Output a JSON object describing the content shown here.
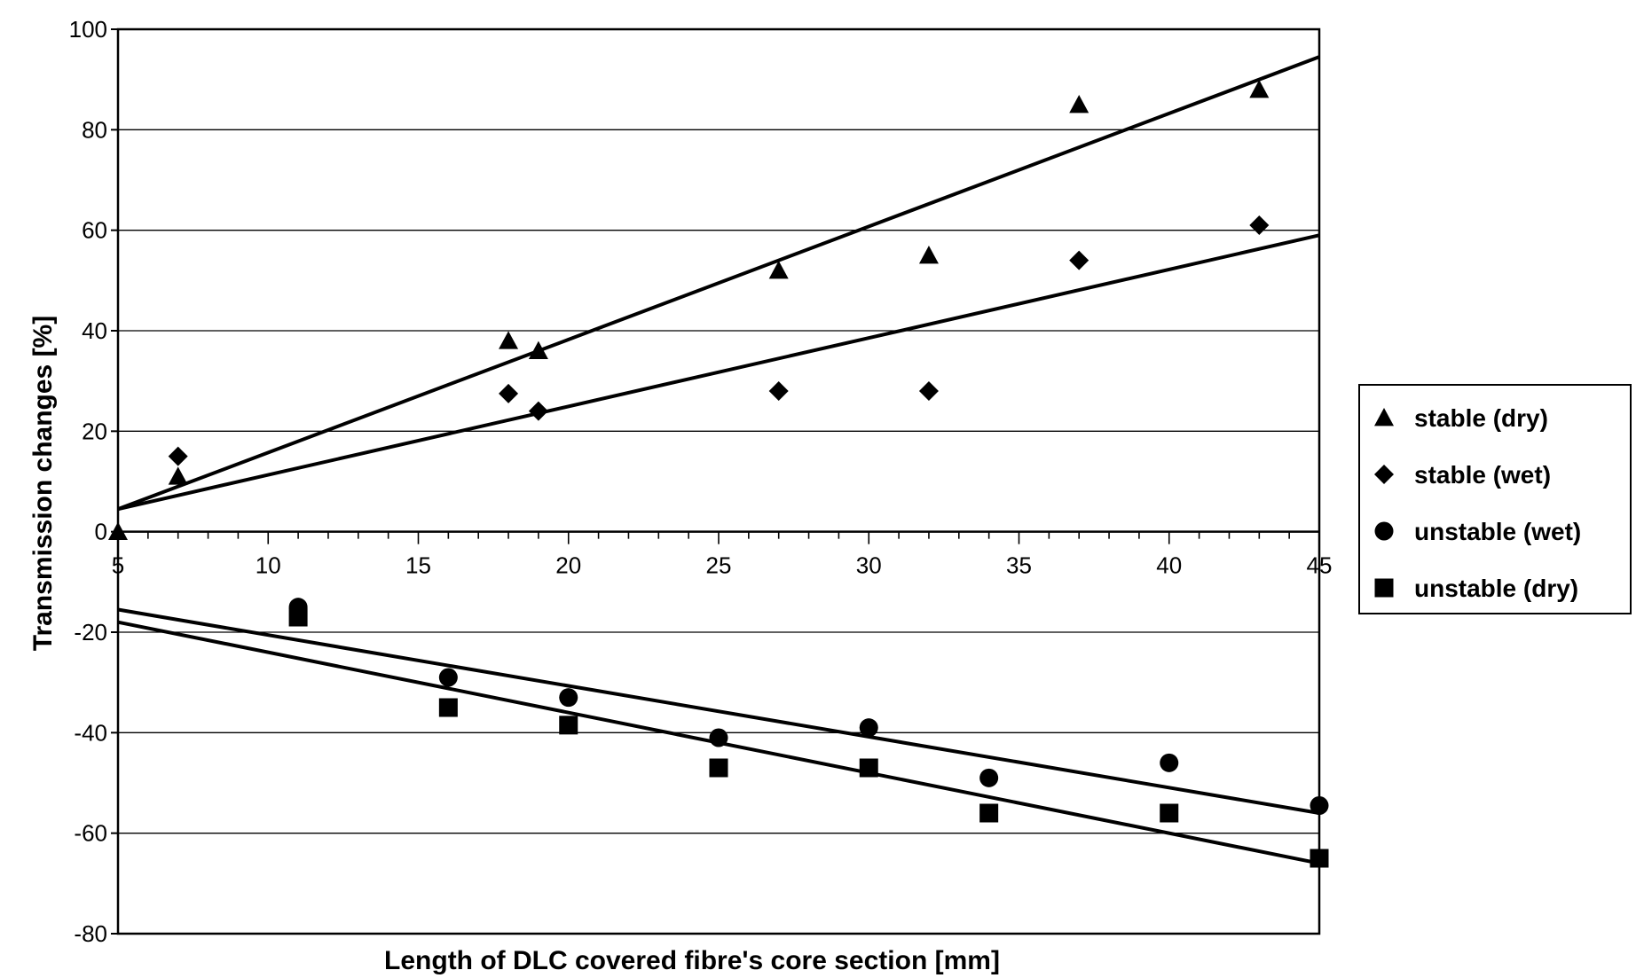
{
  "chart_data": {
    "type": "scatter",
    "xlabel": "Length of DLC covered fibre's core section [mm]",
    "ylabel": "Transmission changes [%]",
    "xlim": [
      5,
      45
    ],
    "ylim": [
      -80,
      100
    ],
    "x_ticks": [
      5,
      10,
      15,
      20,
      25,
      30,
      35,
      40,
      45
    ],
    "y_ticks": [
      100,
      80,
      60,
      40,
      20,
      0,
      -20,
      -40,
      -60,
      -80
    ],
    "x_tick_labels": [
      "5",
      "10",
      "15",
      "20",
      "25",
      "30",
      "35",
      "40",
      "45"
    ],
    "y_tick_labels": [
      "100",
      "80",
      "60",
      "40",
      "20",
      "0",
      "-20",
      "-40",
      "-60",
      "-80"
    ],
    "grid": true,
    "legend_position": "right",
    "series": [
      {
        "name": "stable (dry)",
        "marker": "triangle",
        "x": [
          5,
          7,
          18,
          19,
          27,
          32,
          37,
          43
        ],
        "y": [
          0,
          11,
          38,
          36,
          52,
          55,
          85,
          88
        ],
        "trendline": {
          "x": [
            5,
            45
          ],
          "y": [
            4.5,
            94.5
          ]
        }
      },
      {
        "name": "stable (wet)",
        "marker": "diamond",
        "x": [
          7,
          18,
          19,
          27,
          32,
          37,
          43
        ],
        "y": [
          15,
          27.5,
          24,
          28,
          28,
          54,
          61
        ],
        "trendline": {
          "x": [
            5,
            45
          ],
          "y": [
            4.5,
            59
          ]
        }
      },
      {
        "name": "unstable (wet)",
        "marker": "circle",
        "x": [
          11,
          16,
          20,
          25,
          30,
          34,
          40,
          45
        ],
        "y": [
          -15,
          -29,
          -33,
          -41,
          -39,
          -49,
          -46,
          -54.5
        ],
        "trendline": {
          "x": [
            5,
            45
          ],
          "y": [
            -15.5,
            -56
          ]
        }
      },
      {
        "name": "unstable (dry)",
        "marker": "square",
        "x": [
          11,
          16,
          20,
          25,
          30,
          34,
          40,
          45
        ],
        "y": [
          -17,
          -35,
          -38.5,
          -47,
          -47,
          -56,
          -56,
          -65
        ],
        "trendline": {
          "x": [
            5,
            45
          ],
          "y": [
            -18,
            -66
          ]
        }
      }
    ]
  }
}
